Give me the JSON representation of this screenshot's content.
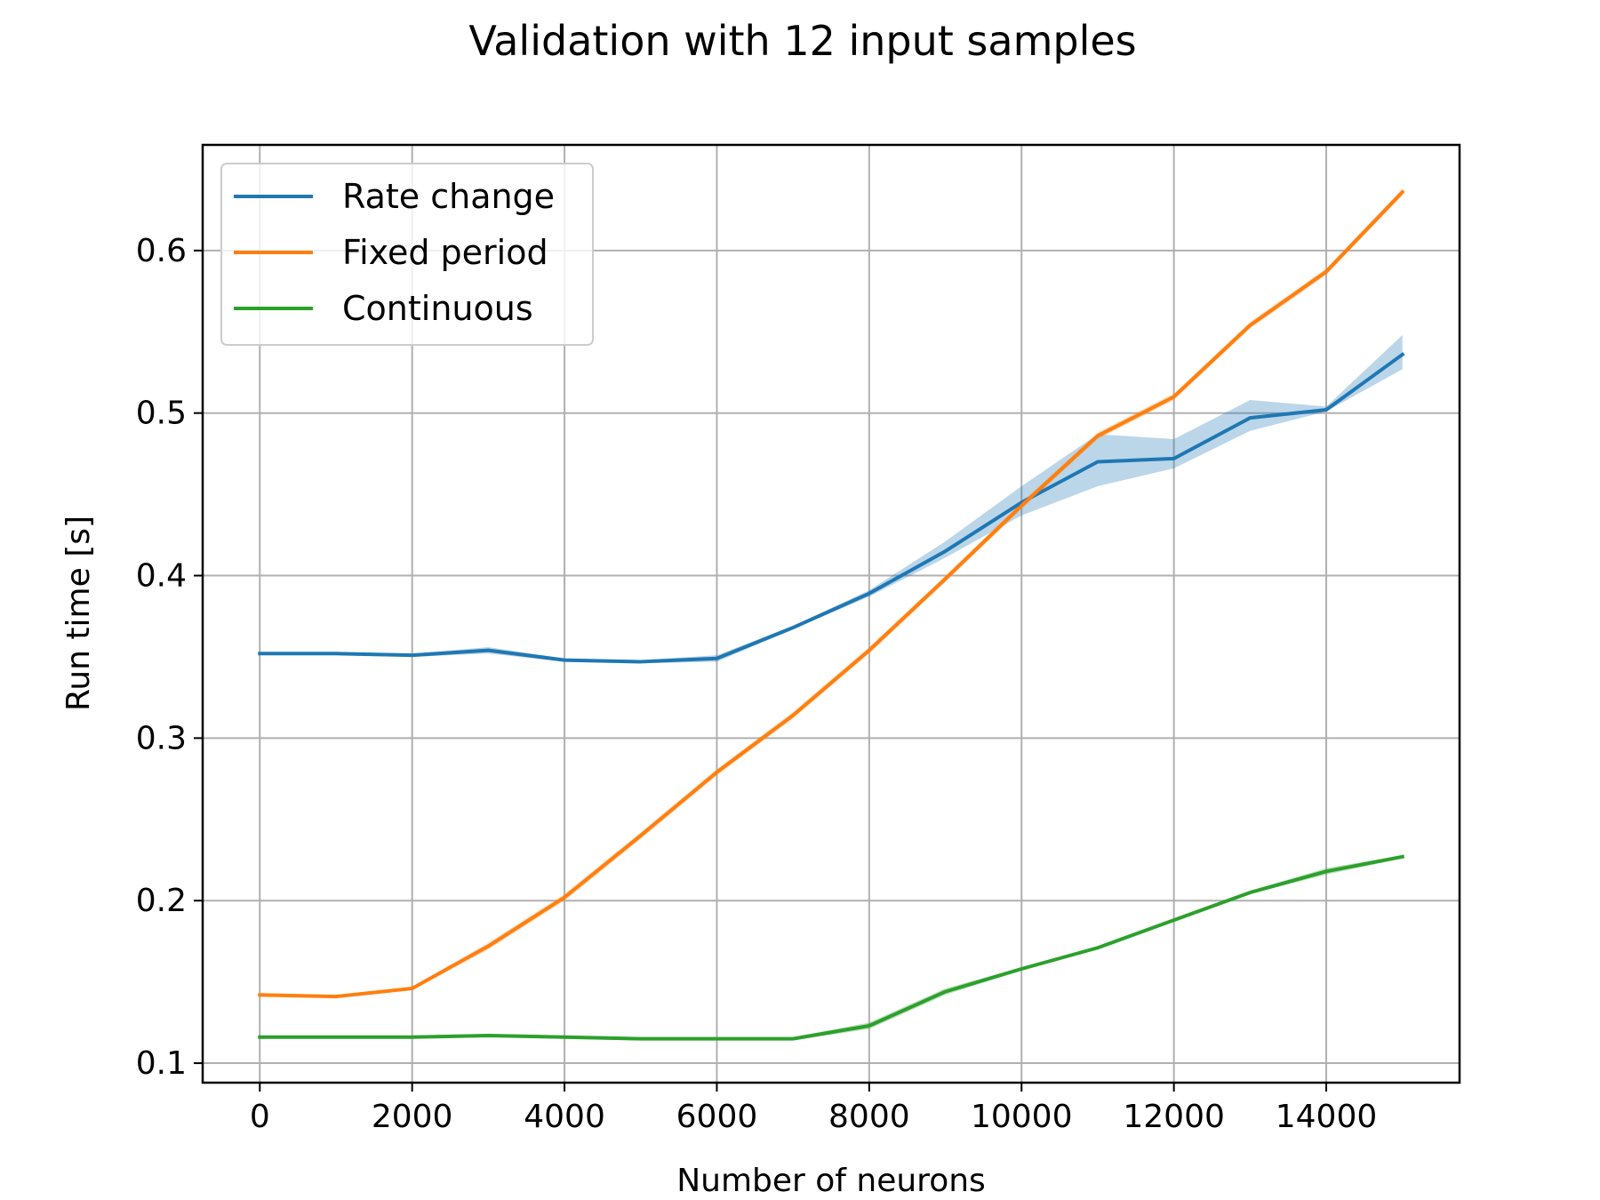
{
  "chart_data": {
    "type": "line",
    "title": "Validation with 12 input samples",
    "xlabel": "Number of neurons",
    "ylabel": "Run time [s]",
    "xlim": [
      -750,
      15750
    ],
    "ylim": [
      0.088,
      0.665
    ],
    "xticks": [
      0,
      2000,
      4000,
      6000,
      8000,
      10000,
      12000,
      14000
    ],
    "xtick_labels": [
      "0",
      "2000",
      "4000",
      "6000",
      "8000",
      "10000",
      "12000",
      "14000"
    ],
    "yticks": [
      0.1,
      0.2,
      0.3,
      0.4,
      0.5,
      0.6
    ],
    "ytick_labels": [
      "0.1",
      "0.2",
      "0.3",
      "0.4",
      "0.5",
      "0.6"
    ],
    "grid": true,
    "legend_position": "upper-left",
    "x": [
      0,
      1000,
      2000,
      3000,
      4000,
      5000,
      6000,
      7000,
      8000,
      9000,
      10000,
      11000,
      12000,
      13000,
      14000,
      15000
    ],
    "series": [
      {
        "name": "Rate change",
        "color": "#1f77b4",
        "values": [
          0.352,
          0.352,
          0.351,
          0.354,
          0.348,
          0.347,
          0.349,
          0.368,
          0.389,
          0.415,
          0.445,
          0.47,
          0.472,
          0.497,
          0.502,
          0.536
        ],
        "lower": [
          0.351,
          0.351,
          0.35,
          0.352,
          0.347,
          0.346,
          0.347,
          0.367,
          0.387,
          0.411,
          0.437,
          0.455,
          0.466,
          0.489,
          0.501,
          0.527
        ],
        "upper": [
          0.353,
          0.353,
          0.352,
          0.356,
          0.349,
          0.348,
          0.351,
          0.369,
          0.391,
          0.421,
          0.455,
          0.487,
          0.484,
          0.508,
          0.504,
          0.548
        ]
      },
      {
        "name": "Fixed period",
        "color": "#ff7f0e",
        "values": [
          0.142,
          0.141,
          0.146,
          0.172,
          0.202,
          0.24,
          0.279,
          0.314,
          0.354,
          0.398,
          0.443,
          0.486,
          0.51,
          0.554,
          0.587,
          0.636
        ],
        "lower": [
          0.141,
          0.14,
          0.145,
          0.17,
          0.2,
          0.238,
          0.277,
          0.312,
          0.352,
          0.396,
          0.441,
          0.484,
          0.508,
          0.552,
          0.585,
          0.634
        ],
        "upper": [
          0.143,
          0.142,
          0.147,
          0.174,
          0.204,
          0.242,
          0.281,
          0.316,
          0.356,
          0.4,
          0.445,
          0.488,
          0.512,
          0.556,
          0.589,
          0.638
        ]
      },
      {
        "name": "Continuous",
        "color": "#2ca02c",
        "values": [
          0.116,
          0.116,
          0.116,
          0.117,
          0.116,
          0.115,
          0.115,
          0.115,
          0.123,
          0.144,
          0.158,
          0.171,
          0.188,
          0.205,
          0.218,
          0.227
        ],
        "lower": [
          0.115,
          0.115,
          0.115,
          0.116,
          0.115,
          0.114,
          0.114,
          0.114,
          0.121,
          0.142,
          0.157,
          0.17,
          0.187,
          0.204,
          0.216,
          0.226
        ],
        "upper": [
          0.117,
          0.117,
          0.117,
          0.118,
          0.117,
          0.116,
          0.116,
          0.116,
          0.125,
          0.146,
          0.159,
          0.172,
          0.189,
          0.206,
          0.22,
          0.228
        ]
      }
    ]
  }
}
